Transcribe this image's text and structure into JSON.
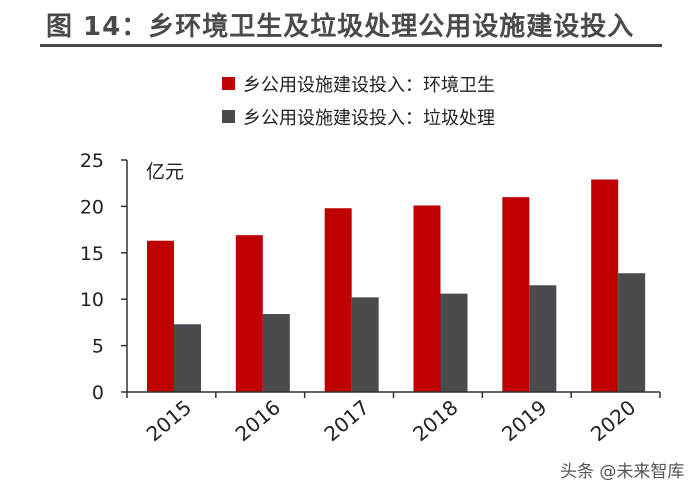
{
  "header": {
    "title": "图 14：乡环境卫生及垃圾处理公用设施建设投入"
  },
  "watermark": {
    "text": "头条 @未来智库"
  },
  "colors": {
    "series_1": "#c00000",
    "series_2": "#4a4a4f",
    "axis": "#333333",
    "title": "#4a4a4a"
  },
  "chart_data": {
    "type": "bar",
    "title": "图 14：乡环境卫生及垃圾处理公用设施建设投入",
    "xlabel": "",
    "ylabel": "亿元",
    "ylim": [
      0,
      25
    ],
    "yticks": [
      0,
      5,
      10,
      15,
      20,
      25
    ],
    "grid": false,
    "legend_position": "top",
    "categories": [
      "2015",
      "2016",
      "2017",
      "2018",
      "2019",
      "2020"
    ],
    "series": [
      {
        "name": "乡公用设施建设投入：环境卫生",
        "values": [
          16.3,
          16.9,
          19.8,
          20.1,
          21.0,
          22.9
        ]
      },
      {
        "name": "乡公用设施建设投入：垃圾处理",
        "values": [
          7.3,
          8.4,
          10.2,
          10.6,
          11.5,
          12.8
        ]
      }
    ]
  }
}
